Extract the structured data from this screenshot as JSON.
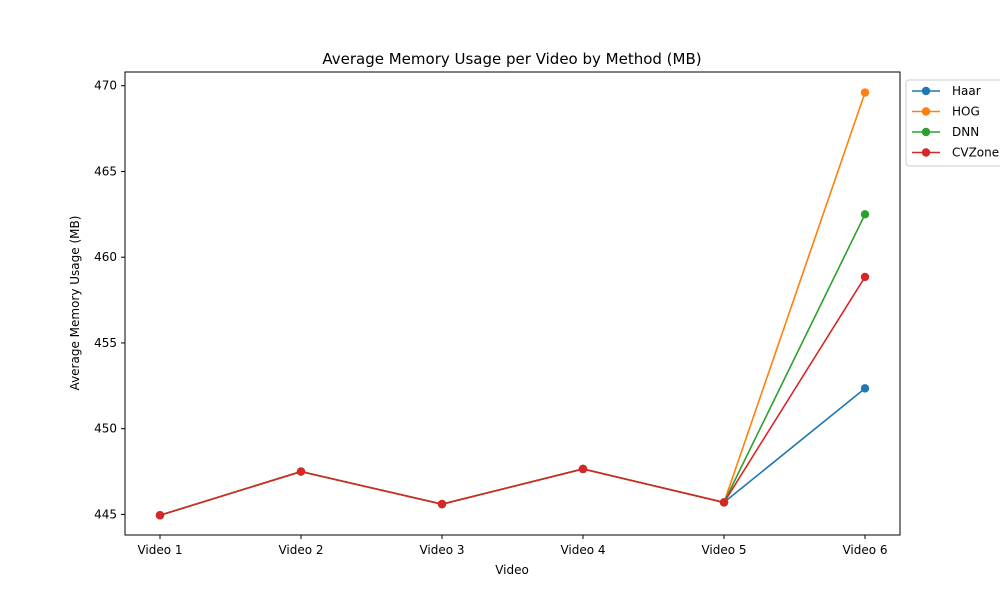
{
  "chart_data": {
    "type": "line",
    "title": "Average Memory Usage per Video by Method (MB)",
    "xlabel": "Video",
    "ylabel": "Average Memory Usage (MB)",
    "categories": [
      "Video 1",
      "Video 2",
      "Video 3",
      "Video 4",
      "Video 5",
      "Video 6"
    ],
    "ylim": [
      443.8,
      470.8
    ],
    "yticks": [
      445,
      450,
      455,
      460,
      465,
      470
    ],
    "grid": false,
    "legend_placement": "outside-top-right",
    "series": [
      {
        "name": "Haar",
        "color": "#1f77b4",
        "values": [
          444.95,
          447.5,
          445.6,
          447.65,
          445.7,
          452.35
        ]
      },
      {
        "name": "HOG",
        "color": "#ff7f0e",
        "values": [
          444.95,
          447.5,
          445.6,
          447.65,
          445.7,
          469.6
        ]
      },
      {
        "name": "DNN",
        "color": "#2ca02c",
        "values": [
          444.95,
          447.5,
          445.6,
          447.65,
          445.7,
          462.5
        ]
      },
      {
        "name": "CVZone",
        "color": "#d62728",
        "values": [
          444.95,
          447.5,
          445.6,
          447.65,
          445.7,
          458.85
        ]
      }
    ]
  }
}
